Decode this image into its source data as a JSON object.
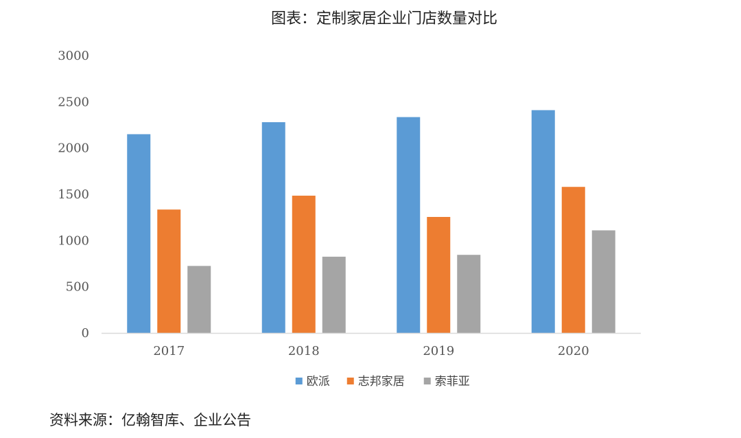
{
  "chart_data": {
    "type": "bar",
    "title": "图表：定制家居企业门店数量对比",
    "categories": [
      "2017",
      "2018",
      "2019",
      "2020"
    ],
    "series": [
      {
        "name": "欧派",
        "color": "#5B9BD5",
        "values": [
          2150,
          2280,
          2335,
          2410
        ]
      },
      {
        "name": "志邦家居",
        "color": "#ED7D31",
        "values": [
          1335,
          1485,
          1255,
          1580
        ]
      },
      {
        "name": "索菲亚",
        "color": "#A5A5A5",
        "values": [
          725,
          825,
          845,
          1110
        ]
      }
    ],
    "ylim": [
      0,
      3000
    ],
    "yticks": [
      "0",
      "500",
      "1000",
      "1500",
      "2000",
      "2500",
      "3000"
    ],
    "xlabel": "",
    "ylabel": "",
    "grid": false,
    "legend_position": "bottom"
  },
  "source_note": "资料来源：亿翰智库、企业公告"
}
